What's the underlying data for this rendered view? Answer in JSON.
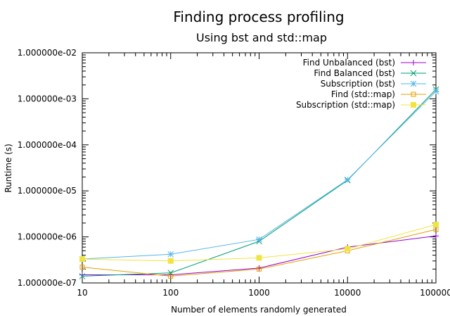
{
  "chart_data": {
    "type": "line",
    "title": "Finding process profiling",
    "subtitle": "Using bst and std::map",
    "xlabel": "Number of elements randomly generated",
    "ylabel": "Runtime (s)",
    "x_scale": "log",
    "y_scale": "log",
    "xlim": [
      10,
      100000
    ],
    "ylim": [
      1e-07,
      0.01
    ],
    "x_ticks": [
      10,
      100,
      1000,
      10000,
      100000
    ],
    "x_tick_labels": [
      "10",
      "100",
      "1000",
      "10000",
      "100000"
    ],
    "y_ticks": [
      1e-07,
      1e-06,
      1e-05,
      0.0001,
      0.001,
      0.01
    ],
    "y_tick_labels": [
      "1.000000e-07",
      "1.000000e-06",
      "1.000000e-05",
      "1.000000e-04",
      "1.000000e-03",
      "1.000000e-02"
    ],
    "grid": false,
    "legend_position": "top-right",
    "x": [
      10,
      100,
      1000,
      10000,
      100000
    ],
    "series": [
      {
        "name": "Find Unbalanced (bst)",
        "color": "#9400d3",
        "marker": "plus",
        "values": [
          1.5e-07,
          1.5e-07,
          2.1e-07,
          6e-07,
          1.05e-06
        ]
      },
      {
        "name": "Find Balanced (bst)",
        "color": "#009e73",
        "marker": "cross",
        "values": [
          1.4e-07,
          1.65e-07,
          8e-07,
          1.7e-05,
          0.0016
        ]
      },
      {
        "name": "Subscription (bst)",
        "color": "#56b4e9",
        "marker": "star",
        "values": [
          3.3e-07,
          4.2e-07,
          8.8e-07,
          1.75e-05,
          0.00145
        ]
      },
      {
        "name": "Find (std::map)",
        "color": "#e69f00",
        "marker": "square-open",
        "values": [
          2.2e-07,
          1.4e-07,
          2e-07,
          5e-07,
          1.45e-06
        ]
      },
      {
        "name": "Subscription (std::map)",
        "color": "#f0e442",
        "marker": "square-filled",
        "values": [
          3.3e-07,
          3e-07,
          3.5e-07,
          5.5e-07,
          1.85e-06
        ]
      }
    ]
  }
}
